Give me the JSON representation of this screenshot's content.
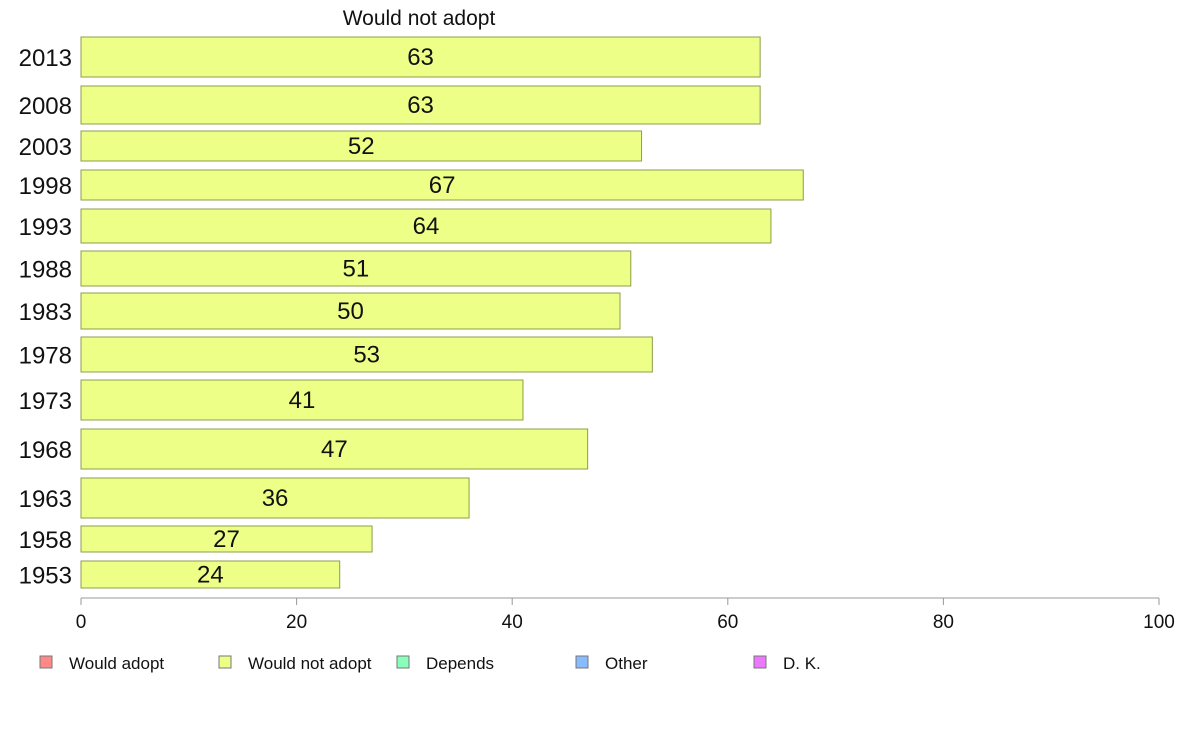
{
  "chart_data": {
    "type": "bar",
    "orientation": "horizontal",
    "title": "Would not adopt",
    "xlabel": "",
    "ylabel": "",
    "categories": [
      "2013",
      "2008",
      "2003",
      "1998",
      "1993",
      "1988",
      "1983",
      "1978",
      "1973",
      "1968",
      "1963",
      "1958",
      "1953"
    ],
    "series": [
      {
        "name": "Would not adopt",
        "color": "#EEFF88",
        "values": [
          63,
          63,
          52,
          67,
          64,
          51,
          50,
          53,
          41,
          47,
          36,
          27,
          24
        ]
      }
    ],
    "xlim": [
      0,
      100
    ],
    "xticks": [
      "0",
      "20",
      "40",
      "60",
      "80",
      "100"
    ],
    "grid": false,
    "legend_position": "bottom",
    "legend": [
      {
        "label": "Would adopt",
        "color": "#FF8888"
      },
      {
        "label": "Would not adopt",
        "color": "#EEFF88"
      },
      {
        "label": "Depends",
        "color": "#88FFBB"
      },
      {
        "label": "Other",
        "color": "#88BBFF"
      },
      {
        "label": "D. K.",
        "color": "#EE77FF"
      }
    ],
    "bar_edge_color": "#8C9C4C"
  }
}
